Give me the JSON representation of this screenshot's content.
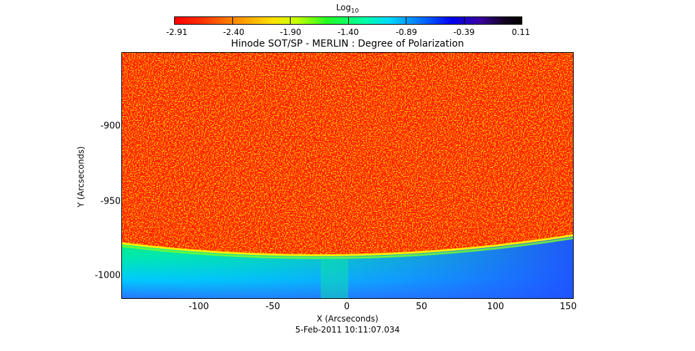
{
  "colorbar": {
    "title": "Log10",
    "ticks": [
      "-2.91",
      "-2.40",
      "-1.90",
      "-1.40",
      "-0.89",
      "-0.39",
      "0.11"
    ]
  },
  "plot": {
    "title": "Hinode SOT/SP - MERLIN : Degree of Polarization",
    "xlabel": "X (Arcseconds)",
    "ylabel": "Y (Arcseconds)",
    "x_ticks": [
      "-100",
      "-50",
      "0",
      "50",
      "100",
      "150"
    ],
    "y_ticks": [
      "-900",
      "-950",
      "-1000"
    ]
  },
  "timestamp": "5-Feb-2011 10:11:07.034",
  "colors": {
    "disk": "#ff1a00",
    "limb": "#ffe600",
    "off_limb": "#00e0a0",
    "far_off_limb": "#2a6cff"
  }
}
